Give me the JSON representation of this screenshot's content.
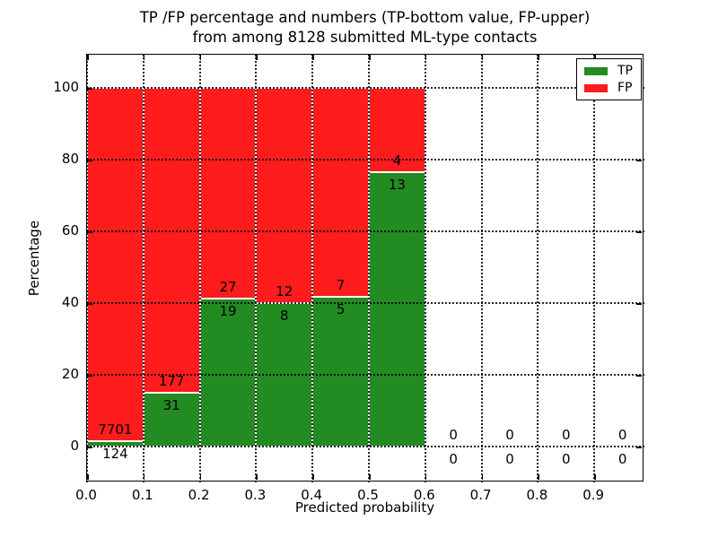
{
  "chart_data": {
    "type": "bar",
    "stacked": true,
    "normalized": "percent",
    "title_line1": "TP /FP percentage and numbers (TP-bottom value, FP-upper)",
    "title_line2": "from among 8128 submitted ML-type contacts",
    "xlabel": "Predicted probability",
    "ylabel": "Percentage",
    "total_contacts": 8128,
    "bin_width": 0.1,
    "bin_starts": [
      0.0,
      0.1,
      0.2,
      0.3,
      0.4,
      0.5,
      0.6,
      0.7,
      0.8,
      0.9
    ],
    "xtick_labels": [
      "0.0",
      "0.1",
      "0.2",
      "0.3",
      "0.4",
      "0.5",
      "0.6",
      "0.7",
      "0.8",
      "0.9"
    ],
    "ytick_values": [
      0,
      20,
      40,
      60,
      80,
      100
    ],
    "ylim": [
      -10,
      110
    ],
    "xlim": [
      0,
      0.99
    ],
    "grid": "dotted",
    "grid_over_bars": true,
    "legend_position": "upper right",
    "series": [
      {
        "name": "TP",
        "color": "#228b22",
        "counts": [
          124,
          31,
          19,
          8,
          5,
          13,
          0,
          0,
          0,
          0
        ]
      },
      {
        "name": "FP",
        "color": "#ff1c1c",
        "counts": [
          7701,
          177,
          27,
          12,
          7,
          4,
          0,
          0,
          0,
          0
        ]
      }
    ],
    "tp_percent_of_bin": [
      1.58,
      14.9,
      41.3,
      40.0,
      41.67,
      76.47,
      0,
      0,
      0,
      0
    ],
    "fp_percent_of_bin": [
      98.42,
      85.1,
      58.7,
      60.0,
      58.33,
      23.53,
      0,
      0,
      0,
      0
    ]
  }
}
